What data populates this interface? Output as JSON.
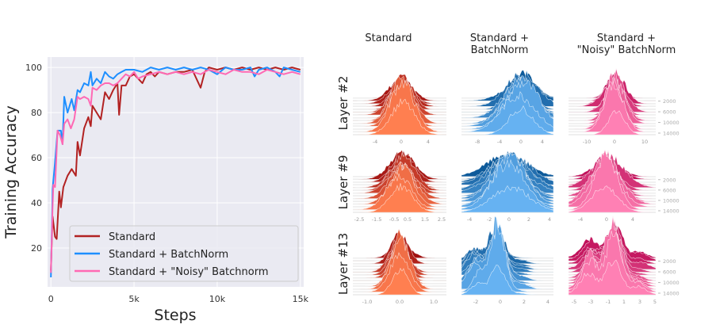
{
  "chart_data": [
    {
      "type": "line",
      "title": "",
      "xlabel": "Steps",
      "ylabel": "Training Accuracy",
      "xlim": [
        -200,
        15200
      ],
      "ylim": [
        2.8,
        104.6
      ],
      "xticks": [
        0,
        5000,
        10000,
        15000
      ],
      "xtick_labels": [
        "0",
        "5k",
        "10k",
        "15k"
      ],
      "yticks": [
        20,
        40,
        60,
        80,
        100
      ],
      "ytick_labels": [
        "20",
        "40",
        "60",
        "80",
        "100"
      ],
      "grid": true,
      "legend_position": "lower-right",
      "background": "#eaeaf2",
      "series": [
        {
          "name": "Standard",
          "color": "#b22222",
          "x": [
            0,
            100,
            250,
            350,
            500,
            600,
            750,
            1000,
            1250,
            1500,
            1600,
            1750,
            2000,
            2250,
            2400,
            2500,
            2750,
            3000,
            3250,
            3500,
            3750,
            4000,
            4100,
            4250,
            4500,
            4750,
            5000,
            5250,
            5500,
            5750,
            6000,
            6250,
            6500,
            7000,
            7500,
            8000,
            8500,
            9000,
            9250,
            9500,
            10000,
            10500,
            11000,
            11500,
            12000,
            12500,
            13000,
            13500,
            14000,
            14500,
            15000
          ],
          "y": [
            10,
            34,
            25,
            24,
            45,
            38,
            47,
            52,
            55,
            52,
            67,
            61,
            73,
            78,
            74,
            83,
            80,
            77,
            89,
            86,
            90,
            93,
            79,
            92,
            92,
            96,
            97,
            95,
            93,
            97,
            98,
            96,
            98,
            97,
            98,
            98,
            99,
            91,
            98,
            100,
            99,
            100,
            99,
            100,
            99,
            100,
            99,
            100,
            99,
            100,
            99
          ]
        },
        {
          "name": "Standard + BatchNorm",
          "color": "#1e8fff",
          "x": [
            0,
            100,
            250,
            400,
            600,
            700,
            800,
            1000,
            1250,
            1400,
            1600,
            1750,
            2000,
            2250,
            2400,
            2500,
            2750,
            3000,
            3250,
            3500,
            3750,
            4000,
            4250,
            4500,
            5000,
            5500,
            6000,
            6500,
            7000,
            7500,
            8000,
            8500,
            9000,
            9500,
            10000,
            10500,
            11000,
            11500,
            12000,
            12250,
            12500,
            13000,
            13500,
            13750,
            14000,
            14500,
            15000
          ],
          "y": [
            7,
            46,
            58,
            72,
            72,
            66,
            87,
            80,
            86,
            81,
            90,
            89,
            93,
            92,
            98,
            92,
            95,
            93,
            98,
            96,
            95,
            97,
            98,
            99,
            99,
            98,
            100,
            99,
            100,
            99,
            100,
            99,
            100,
            99,
            97,
            100,
            99,
            99,
            100,
            96,
            99,
            100,
            98,
            96,
            100,
            99,
            98
          ]
        },
        {
          "name": "Standard + \"Noisy\" Batchnorm",
          "color": "#ff69b4",
          "x": [
            0,
            100,
            150,
            250,
            400,
            550,
            700,
            800,
            1000,
            1200,
            1400,
            1600,
            1750,
            2000,
            2250,
            2400,
            2500,
            2750,
            3000,
            3250,
            3500,
            3750,
            4000,
            4250,
            4500,
            4750,
            5000,
            5250,
            5500,
            6000,
            6500,
            7000,
            7500,
            8000,
            8500,
            9000,
            9500,
            10000,
            10500,
            11000,
            11500,
            12000,
            12500,
            13000,
            13500,
            14000,
            14500,
            15000
          ],
          "y": [
            9,
            38,
            48,
            47,
            72,
            70,
            66,
            75,
            77,
            73,
            77,
            87,
            86,
            87,
            86,
            83,
            91,
            90,
            92,
            93,
            93,
            92,
            93,
            95,
            97,
            96,
            98,
            95,
            96,
            97,
            98,
            97,
            98,
            97,
            98,
            97,
            99,
            98,
            97,
            99,
            98,
            98,
            97,
            99,
            98,
            97,
            98,
            97
          ]
        }
      ]
    },
    {
      "type": "ridgeline",
      "columns": [
        "Standard",
        "Standard +\nBatchNorm",
        "Standard +\n\"Noisy\" BatchNorm"
      ],
      "rows": [
        "Layer #2",
        "Layer #9",
        "Layer #13"
      ],
      "ytick_labels": [
        "2000",
        "6000",
        "10000",
        "14000"
      ],
      "colors": {
        "Standard": [
          "#a01010",
          "#ff7f50"
        ],
        "BatchNorm": [
          "#0d5a9a",
          "#66b2f2"
        ],
        "Noisy": [
          "#c0105a",
          "#ff80b4"
        ]
      },
      "panels": [
        [
          {
            "xticks": [
              "-4",
              "0",
              "4"
            ]
          },
          {
            "xticks": [
              "-8",
              "-4",
              "0",
              "4"
            ]
          },
          {
            "xticks": [
              "-10",
              "0",
              "10"
            ]
          }
        ],
        [
          {
            "xticks": [
              "-2.5",
              "-1.5",
              "-0.5",
              "0.5",
              "1.5",
              "2.5"
            ]
          },
          {
            "xticks": [
              "-4",
              "-2",
              "0",
              "2",
              "4"
            ]
          },
          {
            "xticks": [
              "-4",
              "0",
              "4"
            ]
          }
        ],
        [
          {
            "xticks": [
              "-1.0",
              "0.0",
              "1.0"
            ]
          },
          {
            "xticks": [
              "-2",
              "0",
              "2",
              "4"
            ]
          },
          {
            "xticks": [
              "-5",
              "-3",
              "-1",
              "1",
              "3",
              "5"
            ]
          }
        ]
      ]
    }
  ]
}
